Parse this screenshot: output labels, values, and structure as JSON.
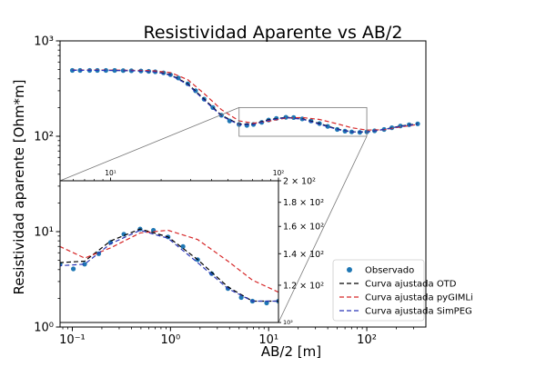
{
  "chart_data": {
    "type": "line",
    "title": "Resistividad Aparente vs AB/2",
    "xlabel": "AB/2 [m]",
    "ylabel": "Resistividad aparente [Ohm*m]",
    "x_scale": "log",
    "y_scale": "log",
    "xlim": [
      0.075,
      400
    ],
    "ylim": [
      1,
      1000
    ],
    "x_ticks": [
      {
        "value": 0.1,
        "label": "10⁻¹"
      },
      {
        "value": 1,
        "label": "10⁰"
      },
      {
        "value": 10,
        "label": "10¹"
      },
      {
        "value": 100,
        "label": "10²"
      }
    ],
    "y_ticks": [
      {
        "value": 1,
        "label": "10⁰"
      },
      {
        "value": 10,
        "label": "10¹"
      },
      {
        "value": 100,
        "label": "10²"
      },
      {
        "value": 1000,
        "label": "10³"
      }
    ],
    "legend_position": "lower-right",
    "grid": false,
    "series": [
      {
        "name": "Observado",
        "style": "markers",
        "color": "#1f77b4",
        "x": [
          0.1,
          0.12,
          0.15,
          0.18,
          0.22,
          0.27,
          0.33,
          0.4,
          0.5,
          0.6,
          0.7,
          0.85,
          1.0,
          1.2,
          1.5,
          1.8,
          2.2,
          2.7,
          3.3,
          4.0,
          5.0,
          6.0,
          7.0,
          8.5,
          10,
          12,
          15,
          18,
          22,
          27,
          33,
          40,
          50,
          60,
          70,
          85,
          100,
          120,
          150,
          180,
          220,
          270,
          330
        ],
        "y": [
          490,
          490,
          490,
          490,
          490,
          490,
          488,
          486,
          484,
          480,
          474,
          462,
          442,
          408,
          355,
          300,
          245,
          200,
          166,
          145,
          133,
          130,
          133,
          140,
          148,
          154,
          158,
          157,
          152,
          145,
          136,
          127,
          118,
          113,
          111,
          110,
          111,
          114,
          118,
          123,
          128,
          132,
          135
        ]
      },
      {
        "name": "Curva ajustada OTD",
        "style": "dashed",
        "color": "#000000",
        "x": [
          0.1,
          0.15,
          0.22,
          0.33,
          0.5,
          0.7,
          1.0,
          1.5,
          2.2,
          3.3,
          5.0,
          7.0,
          10,
          15,
          22,
          33,
          50,
          70,
          100,
          150,
          220,
          330
        ],
        "y": [
          492,
          492,
          491,
          489,
          484,
          474,
          442,
          355,
          245,
          166,
          134,
          135,
          149,
          158,
          152,
          136,
          119,
          111,
          111,
          118,
          128,
          135
        ]
      },
      {
        "name": "Curva ajustada pyGIMLi",
        "style": "dashed",
        "color": "#d62728",
        "x": [
          0.1,
          0.15,
          0.22,
          0.33,
          0.5,
          0.7,
          1.0,
          1.5,
          2.2,
          3.3,
          5.0,
          7.0,
          10,
          15,
          22,
          33,
          50,
          70,
          100,
          150,
          220,
          330
        ],
        "y": [
          495,
          495,
          494,
          493,
          490,
          484,
          465,
          392,
          280,
          190,
          145,
          137,
          144,
          155,
          157,
          150,
          135,
          123,
          116,
          117,
          125,
          133
        ]
      },
      {
        "name": "Curva ajustada SimPEG",
        "style": "dashed",
        "color": "#2a36b8",
        "x": [
          0.1,
          0.15,
          0.22,
          0.33,
          0.5,
          0.7,
          1.0,
          1.5,
          2.2,
          3.3,
          5.0,
          7.0,
          10,
          15,
          22,
          33,
          50,
          70,
          100,
          150,
          220,
          330
        ],
        "y": [
          491,
          491,
          490,
          488,
          483,
          472,
          438,
          348,
          240,
          163,
          132,
          133,
          147,
          157,
          151,
          134,
          118,
          111,
          111,
          118,
          127,
          134
        ]
      }
    ],
    "inset": {
      "zoom_region": {
        "xlim": [
          5,
          100
        ],
        "ylim": [
          100,
          200
        ]
      },
      "x_ticks": [
        {
          "value": 10,
          "label": "10¹"
        },
        {
          "value": 100,
          "label": "10²"
        }
      ],
      "y_ticks": [
        {
          "value": 100,
          "label": "10²"
        },
        {
          "value": 120,
          "label": "1.2 × 10²"
        },
        {
          "value": 140,
          "label": "1.4 × 10²"
        },
        {
          "value": 160,
          "label": "1.6 × 10²"
        },
        {
          "value": 180,
          "label": "1.8 × 10²"
        },
        {
          "value": 200,
          "label": "2 × 10²"
        }
      ]
    }
  }
}
